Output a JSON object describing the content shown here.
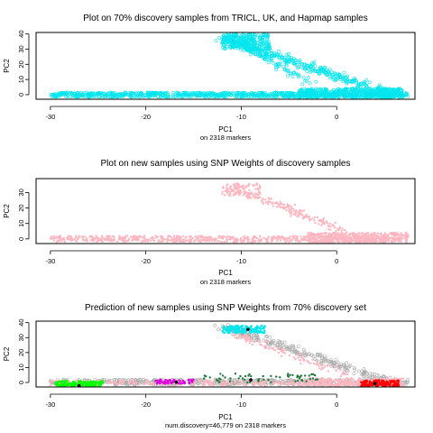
{
  "chart_data": [
    {
      "type": "scatter",
      "title": "Plot on 70% discovery samples from TRICL, UK, and Hapmap samples",
      "xlabel": "PC1",
      "subtitle": "on 2318 markers",
      "ylabel": "PC2",
      "xlim": [
        -31.5,
        8.2
      ],
      "ylim": [
        -3,
        41
      ],
      "xticks": [
        -30,
        -20,
        -10,
        0
      ],
      "yticks": [
        0,
        10,
        20,
        30,
        40
      ],
      "point_shape": "open-circle",
      "series": [
        {
          "color": "#00e5ee",
          "clusters": [
            {
              "x": [
                -30,
                7.5
              ],
              "y": [
                -1.5,
                1.5
              ],
              "n": 900
            },
            {
              "x": [
                -4,
                7
              ],
              "y": [
                -2,
                4
              ],
              "n": 400
            },
            {
              "x": [
                -12,
                -7
              ],
              "y": [
                30,
                40
              ],
              "n": 250
            }
          ],
          "arms": [
            {
              "from": [
                -12,
                37
              ],
              "to": [
                6,
                0
              ],
              "spread": 4,
              "n": 350
            },
            {
              "from": [
                -10,
                33
              ],
              "to": [
                -3,
                8
              ],
              "spread": 2,
              "n": 80
            }
          ]
        }
      ]
    },
    {
      "type": "scatter",
      "title": "Plot on new samples using SNP Weights of discovery samples",
      "xlabel": "PC1",
      "subtitle": "on 2318 markers",
      "ylabel": "PC2",
      "xlim": [
        -31.5,
        8.2
      ],
      "ylim": [
        -3,
        39
      ],
      "xticks": [
        -30,
        -20,
        -10,
        0
      ],
      "yticks": [
        0,
        10,
        20,
        30
      ],
      "point_shape": "dot",
      "series": [
        {
          "color": "#ffb6c1",
          "clusters": [
            {
              "x": [
                -30,
                7
              ],
              "y": [
                -2,
                2
              ],
              "n": 700
            },
            {
              "x": [
                -3,
                7.5
              ],
              "y": [
                -3,
                4
              ],
              "n": 500
            },
            {
              "x": [
                -12,
                -8
              ],
              "y": [
                28,
                36
              ],
              "n": 90
            }
          ],
          "arms": [
            {
              "from": [
                -11,
                33
              ],
              "to": [
                1,
                5
              ],
              "spread": 3.5,
              "n": 180
            }
          ]
        }
      ]
    },
    {
      "type": "scatter",
      "title": "Prediction of new samples using SNP Weights from 70% discovery set",
      "xlabel": "PC1",
      "subtitle": "num.discovery=46,779 on 2318 markers",
      "ylabel": "PC2",
      "xlim": [
        -31.5,
        8.2
      ],
      "ylim": [
        -3,
        41
      ],
      "xticks": [
        -30,
        -20,
        -10,
        0
      ],
      "yticks": [
        0,
        10,
        20,
        30,
        40
      ],
      "series": [
        {
          "color": "#aaaaaa",
          "shape": "open-circle",
          "clusters": [
            {
              "x": [
                -30,
                7.5
              ],
              "y": [
                -1.5,
                2
              ],
              "n": 500
            }
          ],
          "arms": [
            {
              "from": [
                -12,
                37
              ],
              "to": [
                6,
                0
              ],
              "spread": 4,
              "n": 250
            }
          ]
        },
        {
          "color": "#ffb6c1",
          "shape": "dot",
          "clusters": [
            {
              "x": [
                -30,
                7
              ],
              "y": [
                -2,
                1.5
              ],
              "n": 350
            },
            {
              "x": [
                -3,
                7
              ],
              "y": [
                -3,
                3
              ],
              "n": 250
            }
          ],
          "arms": [
            {
              "from": [
                -11,
                33
              ],
              "to": [
                1,
                5
              ],
              "spread": 3,
              "n": 100
            }
          ]
        },
        {
          "color": "#00e5ee",
          "shape": "dot",
          "clusters": [
            {
              "x": [
                -12,
                -7.5
              ],
              "y": [
                33,
                38
              ],
              "n": 160
            }
          ]
        },
        {
          "color": "#00ff00",
          "shape": "dot",
          "clusters": [
            {
              "x": [
                -29.5,
                -24.5
              ],
              "y": [
                -4,
                1
              ],
              "n": 220
            }
          ]
        },
        {
          "color": "#dd00dd",
          "shape": "dot",
          "clusters": [
            {
              "x": [
                -19,
                -15
              ],
              "y": [
                -1,
                2
              ],
              "n": 70
            }
          ]
        },
        {
          "color": "#1f7a3a",
          "shape": "dot",
          "clusters": [
            {
              "x": [
                -14,
                -2
              ],
              "y": [
                0,
                6
              ],
              "n": 60
            }
          ]
        },
        {
          "color": "#ff0000",
          "shape": "dot",
          "clusters": [
            {
              "x": [
                2.5,
                6.5
              ],
              "y": [
                -2.5,
                1.5
              ],
              "n": 160
            }
          ]
        }
      ],
      "centroids": [
        {
          "x": -9.3,
          "y": 35.5,
          "color": "#000000"
        },
        {
          "x": -27,
          "y": -2.2,
          "color": "#000000"
        },
        {
          "x": -16.8,
          "y": 0.2,
          "color": "#000000"
        },
        {
          "x": -9,
          "y": 1.8,
          "color": "#000000"
        },
        {
          "x": 4,
          "y": -0.8,
          "color": "#000000"
        }
      ]
    }
  ]
}
